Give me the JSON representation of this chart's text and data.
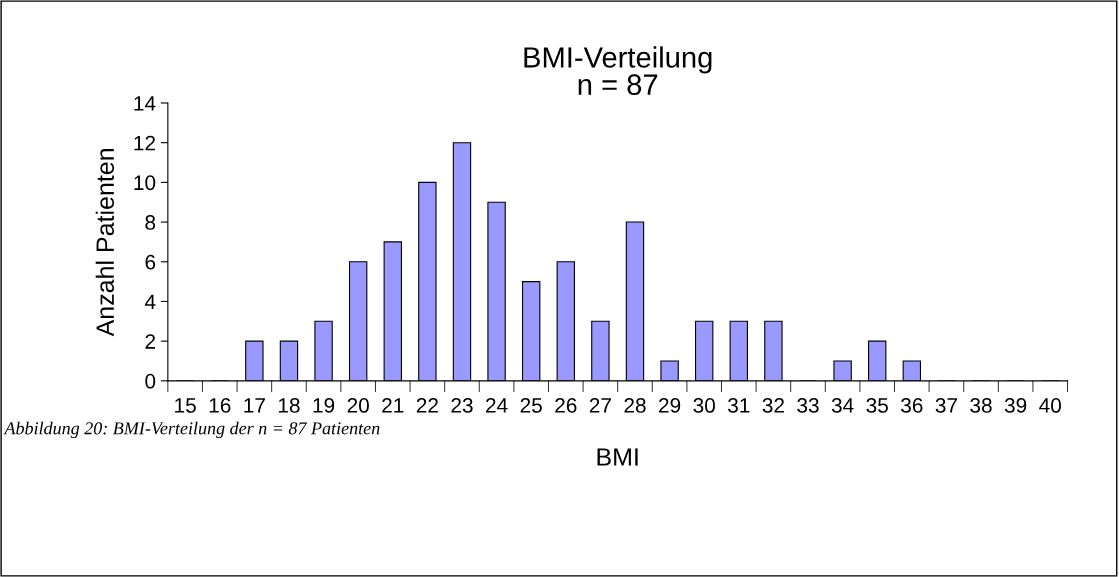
{
  "chart_data": {
    "type": "bar",
    "title": "BMI-Verteilung\nn = 87",
    "xlabel": "BMI",
    "ylabel": "Anzahl Patienten",
    "categories": [
      "15",
      "16",
      "17",
      "18",
      "19",
      "20",
      "21",
      "22",
      "23",
      "24",
      "25",
      "26",
      "27",
      "28",
      "29",
      "30",
      "31",
      "32",
      "33",
      "34",
      "35",
      "36",
      "37",
      "38",
      "39",
      "40"
    ],
    "values": [
      0,
      0,
      2,
      2,
      3,
      6,
      7,
      10,
      12,
      9,
      5,
      6,
      3,
      8,
      1,
      3,
      3,
      3,
      0,
      1,
      2,
      1,
      0,
      0,
      0,
      0
    ],
    "color": "#9999ff",
    "ylim": [
      0,
      14
    ],
    "yticks": [
      0,
      2,
      4,
      6,
      8,
      10,
      12,
      14
    ],
    "grid": false,
    "annotations": [
      "Abbildung 20: BMI-Verteilung der n = 87 Patienten"
    ]
  }
}
